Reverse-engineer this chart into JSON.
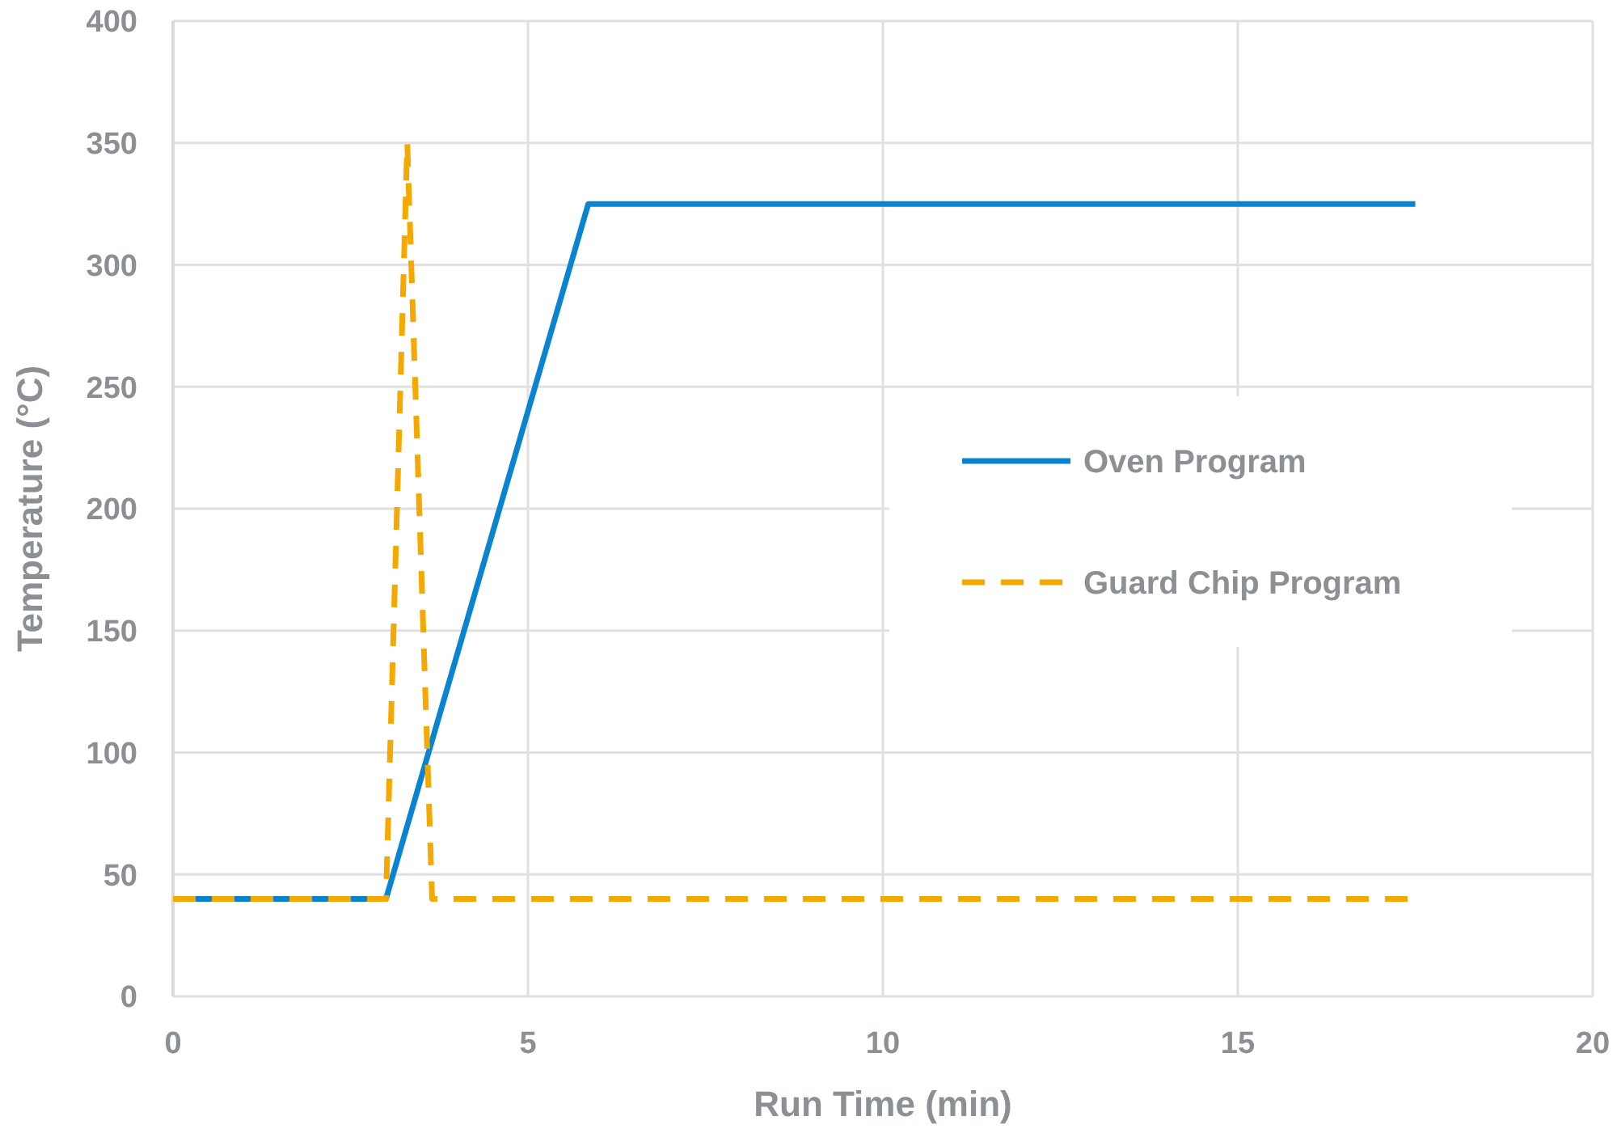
{
  "chart_data": {
    "type": "line",
    "xlabel": "Run Time (min)",
    "ylabel": "Temperature (°C)",
    "xlim": [
      0,
      20
    ],
    "xticks": [
      0,
      5,
      10,
      15,
      20
    ],
    "ylim": [
      0,
      400
    ],
    "yticks": [
      0,
      50,
      100,
      150,
      200,
      250,
      300,
      350,
      400
    ],
    "grid": true,
    "legend": "right",
    "series": [
      {
        "name": "Oven Program",
        "color": "#0a84d0",
        "line_style": "solid",
        "x": [
          0,
          3,
          5.85,
          17.5
        ],
        "values": [
          40,
          40,
          325,
          325
        ]
      },
      {
        "name": "Guard Chip Program",
        "color": "#f5a800",
        "line_style": "dashed",
        "x": [
          0,
          3,
          3.3,
          3.65,
          17.5
        ],
        "values": [
          40,
          40,
          350,
          40,
          40
        ]
      }
    ]
  }
}
